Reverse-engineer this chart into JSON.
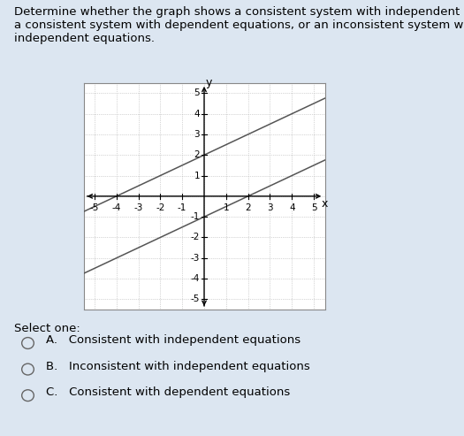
{
  "title_text": "Determine whether the graph shows a consistent system with independent equations,\na consistent system with dependent equations, or an inconsistent system with\nindependent equations.",
  "line1_slope": 0.5,
  "line1_intercept": 2,
  "line2_slope": 0.5,
  "line2_intercept": -1,
  "x_range": [
    -5,
    5
  ],
  "y_range": [
    -5,
    5
  ],
  "line_color": "#555555",
  "grid_color": "#b0b0b0",
  "background_color": "#dce6f1",
  "plot_bg_color": "#ffffff",
  "plot_border_color": "#888888",
  "select_text": "Select one:",
  "option_A": "A.   Consistent with independent equations",
  "option_B": "B.   Inconsistent with independent equations",
  "option_C": "C.   Consistent with dependent equations",
  "title_fontsize": 9.5,
  "axis_label_fontsize": 9,
  "tick_fontsize": 7.5,
  "options_fontsize": 9.5,
  "select_fontsize": 9.5
}
